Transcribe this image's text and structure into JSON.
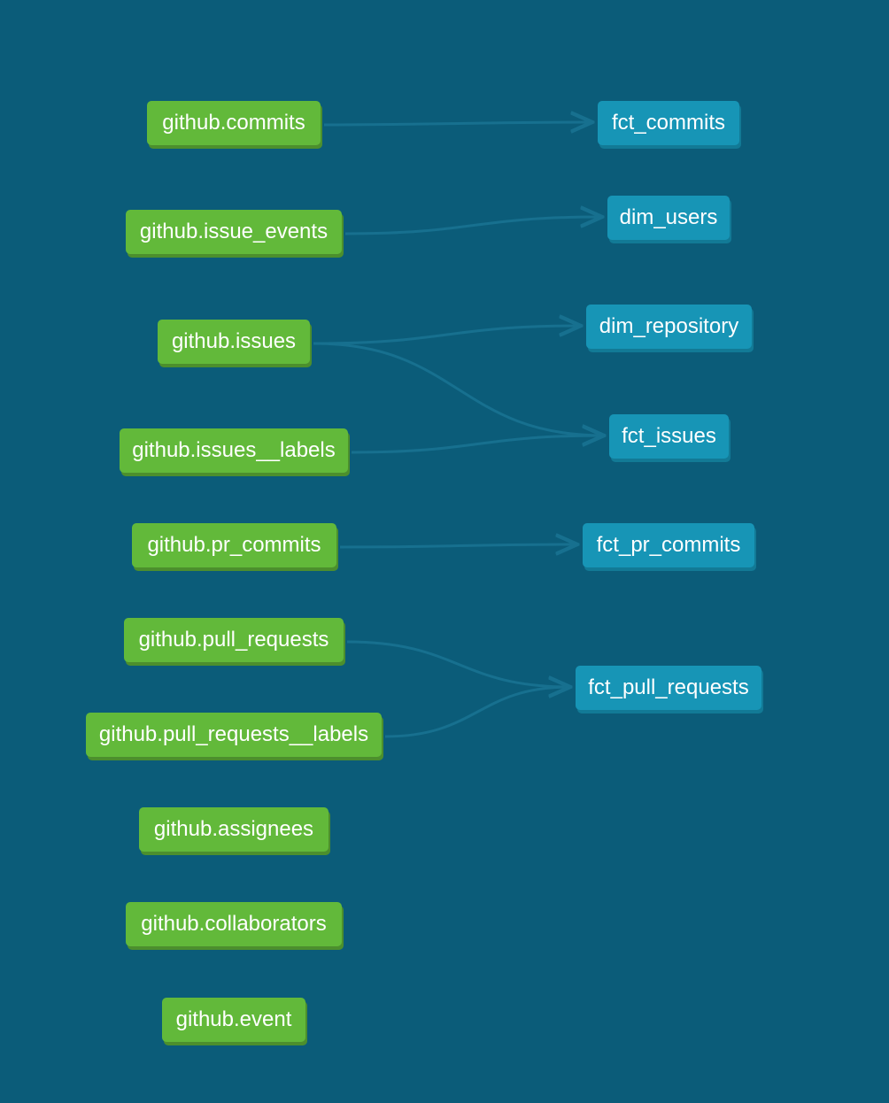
{
  "colors": {
    "background": "#0b5c79",
    "source_node": "#62b93a",
    "model_node": "#1795b6",
    "edge": "#17708f"
  },
  "sources": [
    {
      "id": "commits",
      "label": "github.commits"
    },
    {
      "id": "issue-events",
      "label": "github.issue_events"
    },
    {
      "id": "issues",
      "label": "github.issues"
    },
    {
      "id": "issues-labels",
      "label": "github.issues__labels"
    },
    {
      "id": "pr-commits",
      "label": "github.pr_commits"
    },
    {
      "id": "pull-requests",
      "label": "github.pull_requests"
    },
    {
      "id": "pull-requests-labels",
      "label": "github.pull_requests__labels"
    },
    {
      "id": "assignees",
      "label": "github.assignees"
    },
    {
      "id": "collaborators",
      "label": "github.collaborators"
    },
    {
      "id": "event",
      "label": "github.event"
    }
  ],
  "models": [
    {
      "id": "fct-commits",
      "label": "fct_commits"
    },
    {
      "id": "dim-users",
      "label": "dim_users"
    },
    {
      "id": "dim-repository",
      "label": "dim_repository"
    },
    {
      "id": "fct-issues",
      "label": "fct_issues"
    },
    {
      "id": "fct-pr-commits",
      "label": "fct_pr_commits"
    },
    {
      "id": "fct-pull-requests",
      "label": "fct_pull_requests"
    }
  ],
  "edges": [
    {
      "from": "commits",
      "to": "fct-commits"
    },
    {
      "from": "issue-events",
      "to": "dim-users"
    },
    {
      "from": "issues",
      "to": "dim-repository"
    },
    {
      "from": "issues",
      "to": "fct-issues"
    },
    {
      "from": "issues-labels",
      "to": "fct-issues"
    },
    {
      "from": "pr-commits",
      "to": "fct-pr-commits"
    },
    {
      "from": "pull-requests",
      "to": "fct-pull-requests"
    },
    {
      "from": "pull-requests-labels",
      "to": "fct-pull-requests"
    }
  ]
}
